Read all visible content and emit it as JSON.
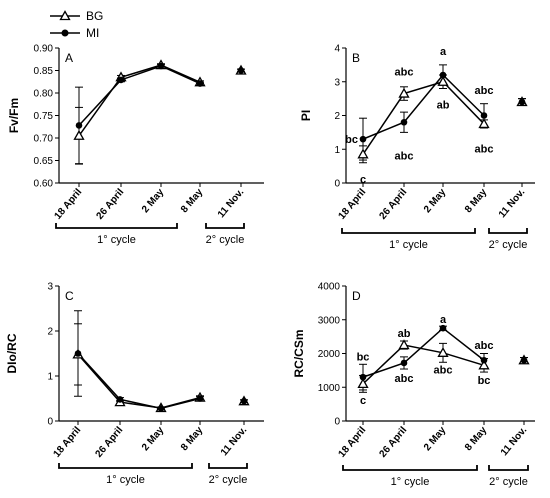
{
  "legend": [
    {
      "name": "BG",
      "marker": "triangle-open"
    },
    {
      "name": "MI",
      "marker": "circle-filled"
    }
  ],
  "chart_data": [
    {
      "type": "line",
      "panel_label": "A",
      "ylabel": "Fv/Fm",
      "categories": [
        "18 April",
        "26 April",
        "2 May",
        "8 May",
        "11 Nov."
      ],
      "ylim": [
        0.6,
        0.9
      ],
      "yticks": [
        "0.60",
        "0.65",
        "0.70",
        "0.75",
        "0.80",
        "0.85",
        "0.90"
      ],
      "series": [
        {
          "name": "BG",
          "values": [
            0.705,
            0.835,
            0.862,
            0.824,
            0.85
          ],
          "errors": [
            0.063,
            0.004,
            0.003,
            0.003,
            0.003
          ]
        },
        {
          "name": "MI",
          "values": [
            0.728,
            0.829,
            0.86,
            0.821,
            0.85
          ],
          "errors": [
            0.085,
            0.004,
            0.003,
            0.003,
            0.003
          ]
        }
      ],
      "cycles": [
        "1° cycle",
        "2° cycle"
      ],
      "annotations": []
    },
    {
      "type": "line",
      "panel_label": "B",
      "ylabel": "PI",
      "categories": [
        "18 April",
        "26 April",
        "2 May",
        "8 May",
        "11 Nov."
      ],
      "ylim": [
        0,
        4
      ],
      "yticks": [
        "0",
        "1",
        "2",
        "3",
        "4"
      ],
      "series": [
        {
          "name": "BG",
          "values": [
            0.85,
            2.65,
            3.0,
            1.75,
            2.4
          ],
          "errors": [
            0.25,
            0.2,
            0.2,
            0.12,
            0.1
          ]
        },
        {
          "name": "MI",
          "values": [
            1.3,
            1.8,
            3.2,
            2.0,
            2.4
          ],
          "errors": [
            0.62,
            0.3,
            0.3,
            0.35,
            0.1
          ]
        }
      ],
      "cycles": [
        "1° cycle",
        "2° cycle"
      ],
      "annotations": [
        {
          "text": "bc",
          "cat": 0,
          "y": 1.3,
          "pos": "left"
        },
        {
          "text": "c",
          "cat": 0,
          "y": 0.3,
          "pos": "below"
        },
        {
          "text": "abc",
          "cat": 1,
          "y": 3.1,
          "pos": "above"
        },
        {
          "text": "abc",
          "cat": 1,
          "y": 1.0,
          "pos": "below"
        },
        {
          "text": "a",
          "cat": 2,
          "y": 3.7,
          "pos": "above"
        },
        {
          "text": "ab",
          "cat": 2,
          "y": 2.5,
          "pos": "below"
        },
        {
          "text": "abc",
          "cat": 3,
          "y": 2.55,
          "pos": "above"
        },
        {
          "text": "abc",
          "cat": 3,
          "y": 1.2,
          "pos": "below"
        }
      ]
    },
    {
      "type": "line",
      "panel_label": "C",
      "ylabel": "DIo/RC",
      "categories": [
        "18 April",
        "26 April",
        "2 May",
        "8 May",
        "11 Nov."
      ],
      "ylim": [
        0,
        3
      ],
      "yticks": [
        "0",
        "1",
        "2",
        "3"
      ],
      "series": [
        {
          "name": "BG",
          "values": [
            1.48,
            0.42,
            0.29,
            0.52,
            0.44
          ],
          "errors": [
            0.68,
            0.03,
            0.02,
            0.04,
            0.03
          ]
        },
        {
          "name": "MI",
          "values": [
            1.5,
            0.48,
            0.28,
            0.5,
            0.44
          ],
          "errors": [
            0.95,
            0.04,
            0.02,
            0.04,
            0.03
          ]
        }
      ],
      "cycles": [
        "1° cycle",
        "2° cycle"
      ],
      "annotations": []
    },
    {
      "type": "line",
      "panel_label": "D",
      "ylabel": "RC/CSm",
      "categories": [
        "18 April",
        "26 April",
        "2 May",
        "8 May",
        "11 Nov."
      ],
      "ylim": [
        0,
        4000
      ],
      "yticks": [
        "0",
        "1000",
        "2000",
        "3000",
        "4000"
      ],
      "series": [
        {
          "name": "BG",
          "values": [
            1100,
            2250,
            2020,
            1650,
            1800
          ],
          "errors": [
            250,
            120,
            280,
            200,
            80
          ]
        },
        {
          "name": "MI",
          "values": [
            1300,
            1720,
            2750,
            1800,
            1800
          ],
          "errors": [
            380,
            180,
            60,
            200,
            80
          ]
        }
      ],
      "cycles": [
        "1° cycle",
        "2° cycle"
      ],
      "annotations": [
        {
          "text": "bc",
          "cat": 0,
          "y": 1700,
          "pos": "above"
        },
        {
          "text": "c",
          "cat": 0,
          "y": 800,
          "pos": "below"
        },
        {
          "text": "ab",
          "cat": 1,
          "y": 2400,
          "pos": "above"
        },
        {
          "text": "abc",
          "cat": 1,
          "y": 1450,
          "pos": "below"
        },
        {
          "text": "a",
          "cat": 2,
          "y": 2820,
          "pos": "above"
        },
        {
          "text": "abc",
          "cat": 2,
          "y": 1700,
          "pos": "below"
        },
        {
          "text": "abc",
          "cat": 3,
          "y": 2050,
          "pos": "above"
        },
        {
          "text": "bc",
          "cat": 3,
          "y": 1400,
          "pos": "below"
        }
      ]
    }
  ]
}
